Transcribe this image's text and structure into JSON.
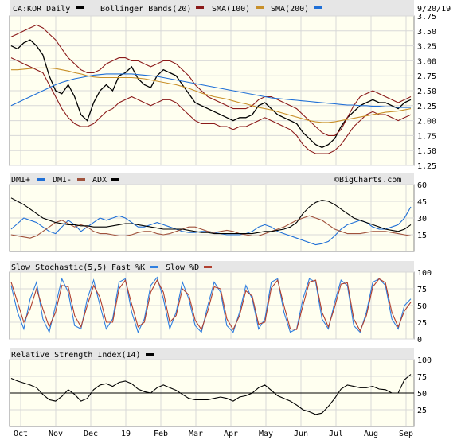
{
  "colors": {
    "price": "#000000",
    "bollinger": "#8b1a1a",
    "sma100": "#c8902a",
    "sma200": "#1f6fd6",
    "dmi_plus": "#1f6fd6",
    "dmi_minus": "#a0523c",
    "adx": "#000000",
    "fast_k": "#2f7fe0",
    "slow_d": "#b04030",
    "rsi": "#000000",
    "plot_bg": "#fffff0",
    "legend_bg": "#e6e6e6"
  },
  "header": {
    "symbol_label": "CA:KOR Daily",
    "bollinger_label": "Bollinger Bands(20)",
    "sma100_label": "SMA(100)",
    "sma200_label": "SMA(200)",
    "date": "9/20/19",
    "watermark": "©BigCharts.com"
  },
  "x_axis_labels": [
    "Oct",
    "Nov",
    "Dec",
    "19",
    "Feb",
    "Mar",
    "Apr",
    "May",
    "Jun",
    "Jul",
    "Aug",
    "Sep"
  ],
  "chart_data": [
    {
      "type": "line",
      "panel": "price",
      "title": "CA:KOR Daily",
      "ylim": [
        1.25,
        3.75
      ],
      "y_ticks": [
        "3.75",
        "3.50",
        "3.25",
        "3.00",
        "2.75",
        "2.50",
        "2.25",
        "2.00",
        "1.75",
        "1.50",
        "1.25"
      ],
      "x": [
        0,
        4,
        8,
        12,
        16,
        20,
        24,
        28,
        32,
        36,
        40,
        44,
        48,
        52,
        56,
        60,
        64,
        68,
        72,
        76,
        80,
        84,
        88,
        92,
        96,
        100,
        104,
        108,
        112,
        116,
        120,
        124,
        128,
        132,
        136,
        140,
        144,
        148,
        152,
        156,
        160,
        164,
        168,
        172,
        176,
        180,
        184,
        188,
        192,
        196,
        200,
        204,
        208,
        212,
        216,
        220,
        224,
        228,
        232,
        236,
        240,
        244,
        248,
        252
      ],
      "series": [
        {
          "name": "CA:KOR Daily",
          "values": [
            3.25,
            3.2,
            3.3,
            3.35,
            3.25,
            3.1,
            2.75,
            2.5,
            2.45,
            2.6,
            2.4,
            2.1,
            2.0,
            2.3,
            2.5,
            2.6,
            2.5,
            2.75,
            2.8,
            2.9,
            2.7,
            2.6,
            2.55,
            2.75,
            2.85,
            2.8,
            2.75,
            2.6,
            2.45,
            2.3,
            2.25,
            2.2,
            2.15,
            2.1,
            2.05,
            2.0,
            2.05,
            2.05,
            2.1,
            2.25,
            2.3,
            2.2,
            2.1,
            2.05,
            2.0,
            1.95,
            1.8,
            1.7,
            1.6,
            1.55,
            1.6,
            1.7,
            1.9,
            2.05,
            2.15,
            2.25,
            2.3,
            2.35,
            2.3,
            2.3,
            2.25,
            2.2,
            2.3,
            2.35
          ]
        },
        {
          "name": "Bollinger Bands(20)",
          "values": [
            3.4,
            3.45,
            3.5,
            3.55,
            3.6,
            3.55,
            3.45,
            3.35,
            3.2,
            3.05,
            2.95,
            2.85,
            2.8,
            2.8,
            2.85,
            2.95,
            3.0,
            3.05,
            3.05,
            3.0,
            3.0,
            2.95,
            2.9,
            2.95,
            3.0,
            3.0,
            2.95,
            2.85,
            2.75,
            2.6,
            2.5,
            2.4,
            2.35,
            2.3,
            2.25,
            2.2,
            2.2,
            2.2,
            2.25,
            2.35,
            2.4,
            2.4,
            2.35,
            2.3,
            2.25,
            2.2,
            2.1,
            2.0,
            1.9,
            1.8,
            1.75,
            1.75,
            1.85,
            2.05,
            2.25,
            2.4,
            2.45,
            2.5,
            2.45,
            2.4,
            2.35,
            2.3,
            2.35,
            2.4
          ]
        },
        {
          "name": "Bollinger Bands(20) lower",
          "values": [
            3.05,
            3.0,
            2.95,
            2.9,
            2.85,
            2.8,
            2.6,
            2.4,
            2.2,
            2.05,
            1.95,
            1.9,
            1.9,
            1.95,
            2.05,
            2.15,
            2.2,
            2.3,
            2.35,
            2.4,
            2.35,
            2.3,
            2.25,
            2.3,
            2.35,
            2.35,
            2.3,
            2.2,
            2.1,
            2.0,
            1.95,
            1.95,
            1.95,
            1.9,
            1.9,
            1.85,
            1.9,
            1.9,
            1.95,
            2.0,
            2.05,
            2.0,
            1.95,
            1.9,
            1.85,
            1.75,
            1.6,
            1.5,
            1.45,
            1.45,
            1.45,
            1.5,
            1.6,
            1.75,
            1.9,
            2.0,
            2.1,
            2.15,
            2.1,
            2.1,
            2.05,
            2.0,
            2.05,
            2.1
          ]
        },
        {
          "name": "SMA(100)",
          "values": [
            2.85,
            2.85,
            2.86,
            2.87,
            2.88,
            2.88,
            2.88,
            2.87,
            2.85,
            2.83,
            2.8,
            2.78,
            2.75,
            2.73,
            2.72,
            2.72,
            2.72,
            2.72,
            2.72,
            2.72,
            2.71,
            2.7,
            2.68,
            2.66,
            2.64,
            2.62,
            2.6,
            2.57,
            2.54,
            2.5,
            2.46,
            2.43,
            2.4,
            2.38,
            2.36,
            2.33,
            2.3,
            2.28,
            2.25,
            2.22,
            2.2,
            2.18,
            2.15,
            2.12,
            2.09,
            2.06,
            2.03,
            2.0,
            1.98,
            1.97,
            1.97,
            1.98,
            2.0,
            2.02,
            2.04,
            2.06,
            2.08,
            2.1,
            2.12,
            2.14,
            2.15,
            2.16,
            2.18,
            2.2
          ]
        },
        {
          "name": "SMA(200)",
          "values": [
            2.25,
            2.3,
            2.35,
            2.4,
            2.45,
            2.5,
            2.55,
            2.6,
            2.64,
            2.67,
            2.7,
            2.72,
            2.74,
            2.76,
            2.77,
            2.78,
            2.78,
            2.78,
            2.78,
            2.78,
            2.77,
            2.76,
            2.75,
            2.74,
            2.72,
            2.7,
            2.68,
            2.66,
            2.64,
            2.62,
            2.6,
            2.58,
            2.56,
            2.54,
            2.52,
            2.5,
            2.48,
            2.46,
            2.44,
            2.42,
            2.4,
            2.38,
            2.37,
            2.36,
            2.35,
            2.34,
            2.33,
            2.32,
            2.31,
            2.3,
            2.29,
            2.28,
            2.27,
            2.26,
            2.26,
            2.25,
            2.25,
            2.24,
            2.24,
            2.23,
            2.23,
            2.22,
            2.22,
            2.22
          ]
        }
      ]
    },
    {
      "type": "line",
      "panel": "dmi",
      "ylim": [
        0,
        60
      ],
      "y_ticks": [
        "60",
        "45",
        "30",
        "15"
      ],
      "legend": [
        "DMI+",
        "DMI-",
        "ADX"
      ],
      "series": [
        {
          "name": "DMI+",
          "values": [
            20,
            25,
            30,
            28,
            26,
            22,
            18,
            16,
            22,
            28,
            24,
            18,
            22,
            26,
            30,
            28,
            30,
            32,
            30,
            26,
            22,
            22,
            24,
            26,
            24,
            22,
            20,
            18,
            17,
            17,
            18,
            18,
            17,
            16,
            15,
            15,
            15,
            16,
            18,
            22,
            24,
            22,
            18,
            16,
            14,
            12,
            10,
            8,
            6,
            7,
            9,
            14,
            20,
            24,
            26,
            28,
            26,
            22,
            20,
            20,
            22,
            24,
            30,
            40
          ]
        },
        {
          "name": "DMI-",
          "values": [
            15,
            14,
            13,
            12,
            14,
            18,
            22,
            26,
            28,
            25,
            22,
            24,
            22,
            18,
            16,
            16,
            15,
            14,
            14,
            15,
            17,
            18,
            18,
            16,
            15,
            16,
            18,
            20,
            22,
            22,
            20,
            18,
            17,
            18,
            19,
            18,
            16,
            15,
            14,
            14,
            16,
            18,
            20,
            22,
            25,
            28,
            30,
            32,
            30,
            28,
            24,
            20,
            18,
            16,
            16,
            16,
            17,
            18,
            18,
            18,
            17,
            16,
            15,
            14
          ]
        },
        {
          "name": "ADX",
          "values": [
            48,
            45,
            42,
            38,
            34,
            30,
            28,
            26,
            25,
            24,
            24,
            23,
            23,
            22,
            22,
            22,
            23,
            24,
            25,
            25,
            24,
            23,
            22,
            21,
            20,
            20,
            20,
            20,
            19,
            18,
            17,
            17,
            16,
            16,
            16,
            16,
            16,
            16,
            16,
            17,
            18,
            18,
            19,
            20,
            22,
            26,
            34,
            40,
            44,
            46,
            45,
            42,
            38,
            34,
            30,
            28,
            26,
            24,
            22,
            20,
            19,
            18,
            20,
            24
          ]
        }
      ]
    },
    {
      "type": "line",
      "panel": "stochastic",
      "ylim": [
        0,
        100
      ],
      "y_ticks": [
        "100",
        "75",
        "50",
        "25",
        "0"
      ],
      "legend": [
        "Slow Stochastic(5,5)",
        "Fast %K",
        "Slow %D"
      ],
      "series": [
        {
          "name": "Fast %K",
          "values": [
            80,
            40,
            15,
            60,
            85,
            30,
            10,
            50,
            90,
            70,
            20,
            15,
            60,
            88,
            50,
            15,
            30,
            85,
            90,
            40,
            10,
            30,
            80,
            92,
            60,
            15,
            40,
            85,
            60,
            20,
            10,
            50,
            85,
            70,
            20,
            10,
            40,
            80,
            60,
            15,
            30,
            85,
            90,
            40,
            10,
            15,
            60,
            90,
            85,
            30,
            15,
            55,
            88,
            80,
            20,
            10,
            40,
            85,
            90,
            80,
            30,
            15,
            50,
            60
          ]
        },
        {
          "name": "Slow %D",
          "values": [
            85,
            55,
            25,
            45,
            75,
            45,
            18,
            40,
            80,
            78,
            35,
            18,
            50,
            80,
            62,
            25,
            25,
            75,
            88,
            52,
            18,
            25,
            70,
            88,
            70,
            25,
            35,
            75,
            66,
            28,
            14,
            42,
            78,
            75,
            30,
            14,
            35,
            72,
            64,
            22,
            25,
            76,
            88,
            50,
            15,
            14,
            50,
            85,
            88,
            40,
            18,
            48,
            82,
            84,
            30,
            12,
            35,
            78,
            90,
            84,
            40,
            18,
            42,
            55
          ]
        }
      ]
    },
    {
      "type": "line",
      "panel": "rsi",
      "ylim": [
        0,
        100
      ],
      "y_ticks": [
        "100",
        "75",
        "50",
        "25"
      ],
      "legend": [
        "Relative Strength Index(14)"
      ],
      "series": [
        {
          "name": "Relative Strength Index(14)",
          "values": [
            72,
            68,
            65,
            62,
            58,
            48,
            40,
            38,
            45,
            55,
            48,
            38,
            42,
            55,
            62,
            64,
            60,
            66,
            68,
            64,
            56,
            52,
            50,
            58,
            62,
            58,
            54,
            48,
            42,
            40,
            40,
            40,
            42,
            44,
            42,
            38,
            44,
            46,
            50,
            58,
            62,
            54,
            46,
            42,
            38,
            32,
            25,
            22,
            18,
            20,
            30,
            42,
            56,
            62,
            60,
            58,
            58,
            60,
            56,
            55,
            50,
            50,
            70,
            78
          ]
        }
      ]
    }
  ]
}
